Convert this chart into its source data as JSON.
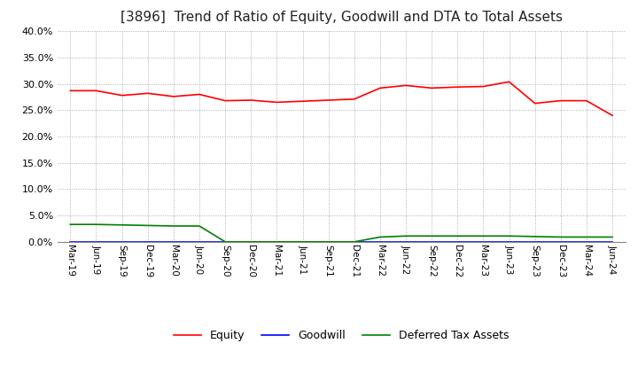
{
  "title": "[3896]  Trend of Ratio of Equity, Goodwill and DTA to Total Assets",
  "title_fontsize": 11,
  "background_color": "#ffffff",
  "grid_color": "#aaaaaa",
  "xlabels": [
    "Mar-19",
    "Jun-19",
    "Sep-19",
    "Dec-19",
    "Mar-20",
    "Jun-20",
    "Sep-20",
    "Dec-20",
    "Mar-21",
    "Jun-21",
    "Sep-21",
    "Dec-21",
    "Mar-22",
    "Jun-22",
    "Sep-22",
    "Dec-22",
    "Mar-23",
    "Jun-23",
    "Sep-23",
    "Dec-23",
    "Mar-24",
    "Jun-24"
  ],
  "equity": [
    28.7,
    28.7,
    27.8,
    28.2,
    27.6,
    28.0,
    26.8,
    26.9,
    26.5,
    26.7,
    26.9,
    27.1,
    29.2,
    29.7,
    29.2,
    29.4,
    29.5,
    30.4,
    26.3,
    26.8,
    26.8,
    24.0
  ],
  "goodwill": [
    0.0,
    0.0,
    0.0,
    0.0,
    0.0,
    0.0,
    0.0,
    0.0,
    0.0,
    0.0,
    0.0,
    0.0,
    0.0,
    0.0,
    0.0,
    0.0,
    0.0,
    0.0,
    0.0,
    0.0,
    0.0,
    0.0
  ],
  "dta": [
    3.3,
    3.3,
    3.2,
    3.1,
    3.0,
    3.0,
    0.0,
    0.0,
    0.0,
    0.0,
    0.0,
    0.0,
    0.9,
    1.1,
    1.1,
    1.1,
    1.1,
    1.1,
    1.0,
    0.9,
    0.9,
    0.9
  ],
  "equity_color": "#ff0000",
  "goodwill_color": "#0000ff",
  "dta_color": "#008000",
  "ylim": [
    0,
    40
  ],
  "yticks": [
    0,
    5,
    10,
    15,
    20,
    25,
    30,
    35,
    40
  ],
  "legend_labels": [
    "Equity",
    "Goodwill",
    "Deferred Tax Assets"
  ]
}
